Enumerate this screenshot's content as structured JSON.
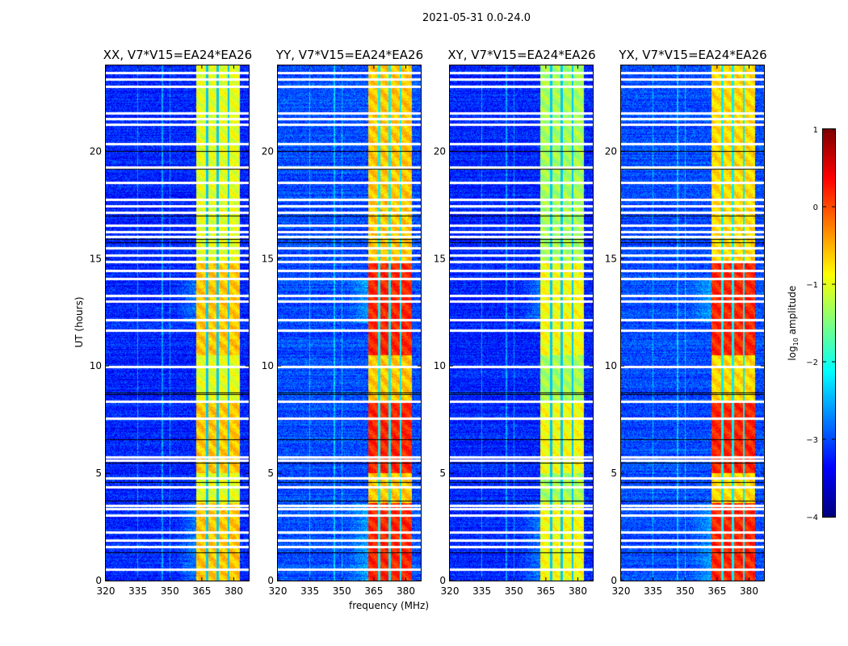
{
  "chart_data": {
    "type": "heatmap",
    "title": "2021-05-31 0.0-24.0",
    "xlabel": "frequency (MHz)",
    "ylabel": "UT (hours)",
    "xlim": [
      320,
      387
    ],
    "ylim": [
      0,
      24
    ],
    "xticks": [
      "320",
      "335",
      "350",
      "365",
      "380"
    ],
    "yticks": [
      "0",
      "5",
      "10",
      "15",
      "20"
    ],
    "colorbar": {
      "label_prefix": "log",
      "label_sub": "10",
      "label_suffix": " amplitude",
      "clim": [
        -4,
        1
      ],
      "colormap": "jet",
      "ticks": [
        "1",
        "0",
        "−1",
        "−2",
        "−3",
        "−4"
      ],
      "tick_values": [
        1,
        0,
        -1,
        -2,
        -3,
        -4
      ]
    },
    "panels": [
      {
        "title": "XX, V7*V15=EA24*EA26",
        "background_level": -3.2,
        "band_level": -1.0,
        "band_peak": -0.6
      },
      {
        "title": "YY, V7*V15=EA24*EA26",
        "background_level": -3.0,
        "band_level": -0.6,
        "band_peak": 0.2
      },
      {
        "title": "XY, V7*V15=EA24*EA26",
        "background_level": -3.2,
        "band_level": -1.3,
        "band_peak": -0.9
      },
      {
        "title": "YX, V7*V15=EA24*EA26",
        "background_level": -3.0,
        "band_level": -0.7,
        "band_peak": 0.2
      }
    ],
    "rfi_band_mhz": [
      362.5,
      383
    ],
    "band_gaps_mhz": [
      367.5,
      372.5,
      377.5
    ],
    "flagged_hours_white": [
      23.7,
      23.4,
      23.05,
      21.8,
      21.55,
      21.3,
      20.4,
      19.3,
      18.6,
      17.8,
      17.5,
      17.2,
      16.6,
      16.3,
      16.05,
      15.55,
      15.2,
      14.9,
      14.5,
      14.1,
      13.3,
      13.05,
      12.2,
      11.7,
      10.0,
      8.4,
      7.6,
      5.8,
      5.65,
      4.8,
      4.4,
      3.55,
      3.4,
      3.1,
      2.3,
      1.9,
      1.6,
      0.55
    ],
    "flagged_hours_black": [
      20.0,
      19.2,
      17.0,
      15.9,
      15.75,
      8.75,
      8.68,
      6.6,
      5.5,
      4.6,
      3.72,
      1.3
    ]
  }
}
